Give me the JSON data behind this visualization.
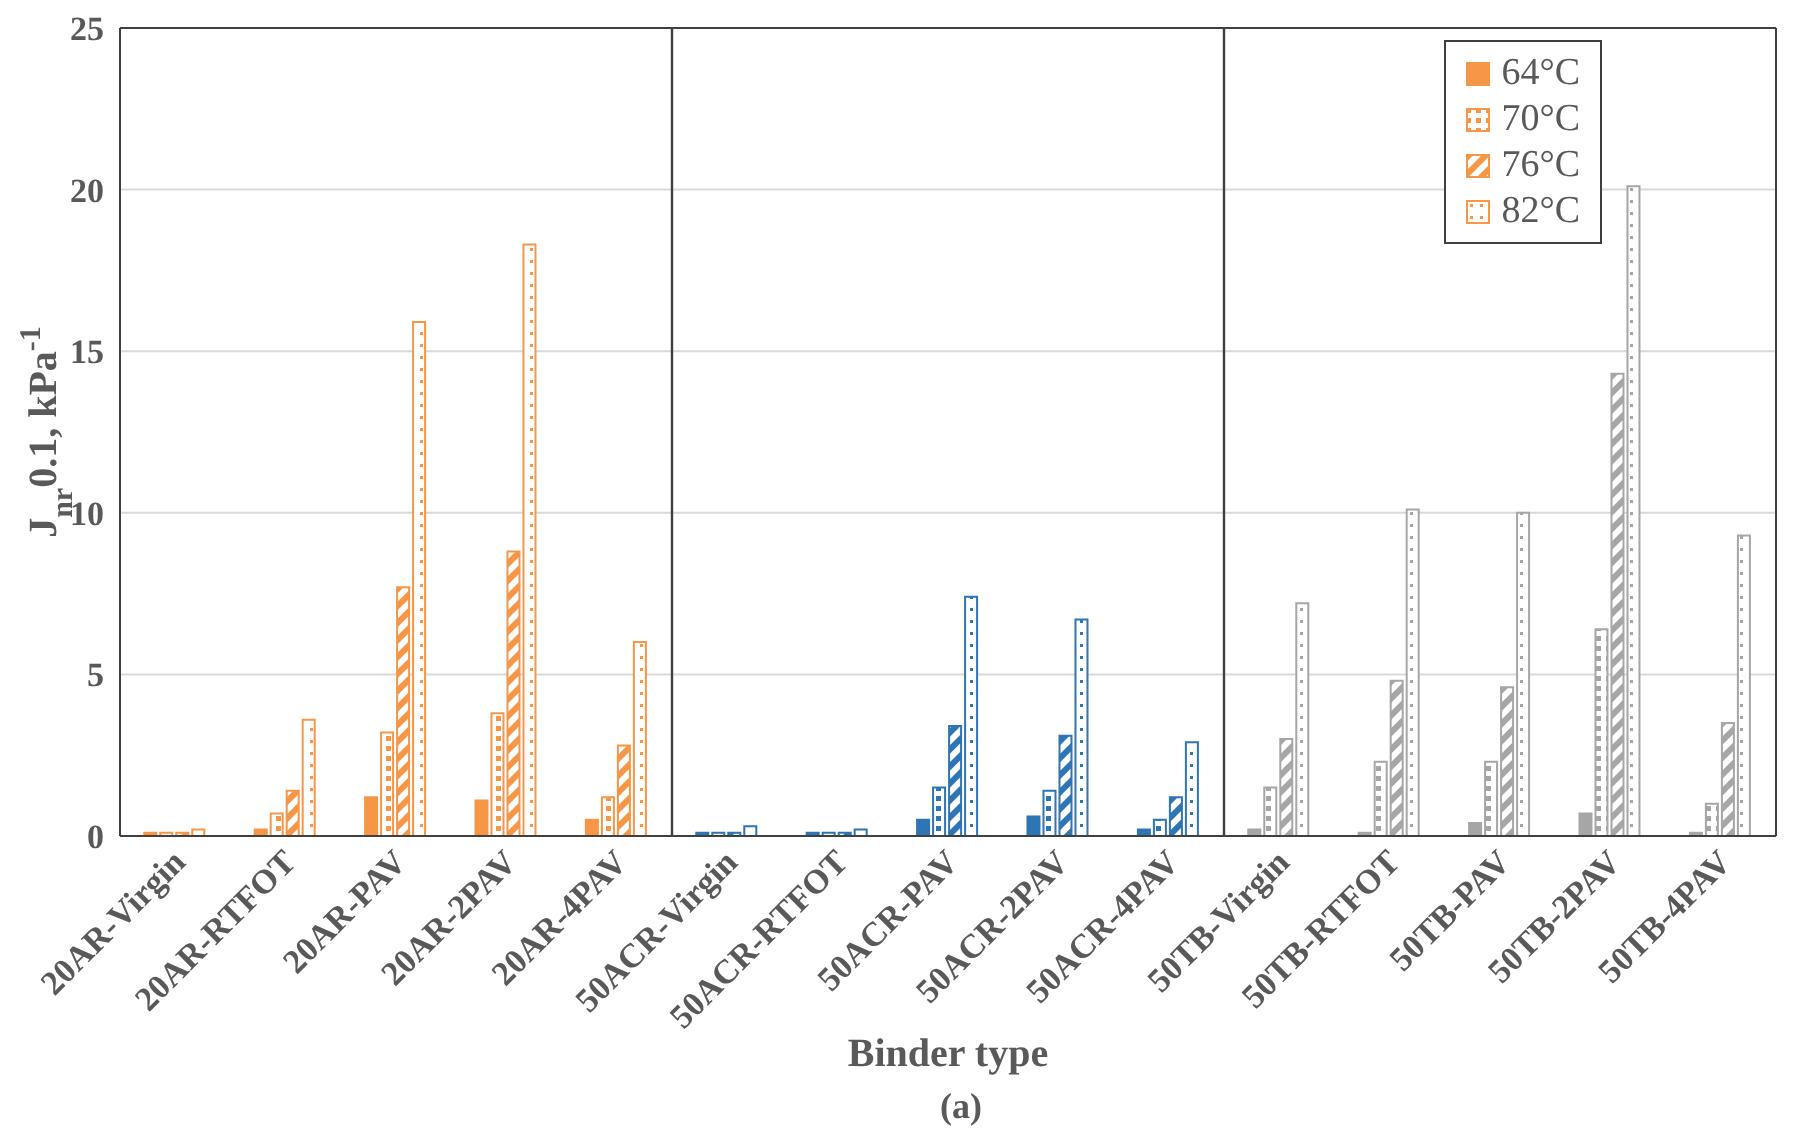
{
  "chart_data": {
    "type": "bar",
    "xlabel": "Binder type",
    "ylabel": "J$_{nr}$0.1, kPa$^{-1}$",
    "categories": [
      "20AR-Virgin",
      "20AR-RTFOT",
      "20AR-PAV",
      "20AR-2PAV",
      "20AR-4PAV",
      "50ACR-Virgin",
      "50ACR-RTFOT",
      "50ACR-PAV",
      "50ACR-2PAV",
      "50ACR-4PAV",
      "50TB-Virgin",
      "50TB-RTFOT",
      "50TB-PAV",
      "50TB-2PAV",
      "50TB-4PAV"
    ],
    "series": [
      {
        "name": "64°C",
        "color": "#f79646",
        "colors": [
          "#f79646",
          "#f79646",
          "#f79646",
          "#f79646",
          "#f79646",
          "#2e75b6",
          "#2e75b6",
          "#2e75b6",
          "#2e75b6",
          "#2e75b6",
          "#a6a6a6",
          "#a6a6a6",
          "#a6a6a6",
          "#a6a6a6",
          "#a6a6a6"
        ],
        "values": [
          0.1,
          0.2,
          1.2,
          1.1,
          0.5,
          0.1,
          0.1,
          0.5,
          0.6,
          0.2,
          0.2,
          0.1,
          0.4,
          0.7,
          0.1
        ]
      },
      {
        "name": "70°C",
        "color": "#f79646",
        "colors": [
          "#f79646",
          "#f79646",
          "#f79646",
          "#f79646",
          "#f79646",
          "#2e75b6",
          "#2e75b6",
          "#2e75b6",
          "#2e75b6",
          "#2e75b6",
          "#a6a6a6",
          "#a6a6a6",
          "#a6a6a6",
          "#a6a6a6",
          "#a6a6a6"
        ],
        "values": [
          0.1,
          0.7,
          3.2,
          3.8,
          1.2,
          0.1,
          0.1,
          1.5,
          1.4,
          0.5,
          1.5,
          2.3,
          2.3,
          6.4,
          1.0
        ]
      },
      {
        "name": "76°C",
        "color": "#f79646",
        "colors": [
          "#f79646",
          "#f79646",
          "#f79646",
          "#f79646",
          "#f79646",
          "#2e75b6",
          "#2e75b6",
          "#2e75b6",
          "#2e75b6",
          "#2e75b6",
          "#a6a6a6",
          "#a6a6a6",
          "#a6a6a6",
          "#a6a6a6",
          "#a6a6a6"
        ],
        "values": [
          0.1,
          1.4,
          7.7,
          8.8,
          2.8,
          0.1,
          0.1,
          3.4,
          3.1,
          1.2,
          3.0,
          4.8,
          4.6,
          14.3,
          3.5
        ]
      },
      {
        "name": "82°C",
        "color": "#f79646",
        "colors": [
          "#f79646",
          "#f79646",
          "#f79646",
          "#f79646",
          "#f79646",
          "#2e75b6",
          "#2e75b6",
          "#2e75b6",
          "#2e75b6",
          "#2e75b6",
          "#a6a6a6",
          "#a6a6a6",
          "#a6a6a6",
          "#a6a6a6",
          "#a6a6a6"
        ],
        "values": [
          0.2,
          3.6,
          15.9,
          18.3,
          6.0,
          0.3,
          0.2,
          7.4,
          6.7,
          2.9,
          7.2,
          10.1,
          10.0,
          20.1,
          9.3
        ]
      }
    ],
    "ylim": [
      0,
      25
    ],
    "yticks": [
      0,
      5,
      10,
      15,
      20,
      25
    ],
    "grid": "y",
    "legend": "top right",
    "annotations": [
      "(a)"
    ]
  }
}
